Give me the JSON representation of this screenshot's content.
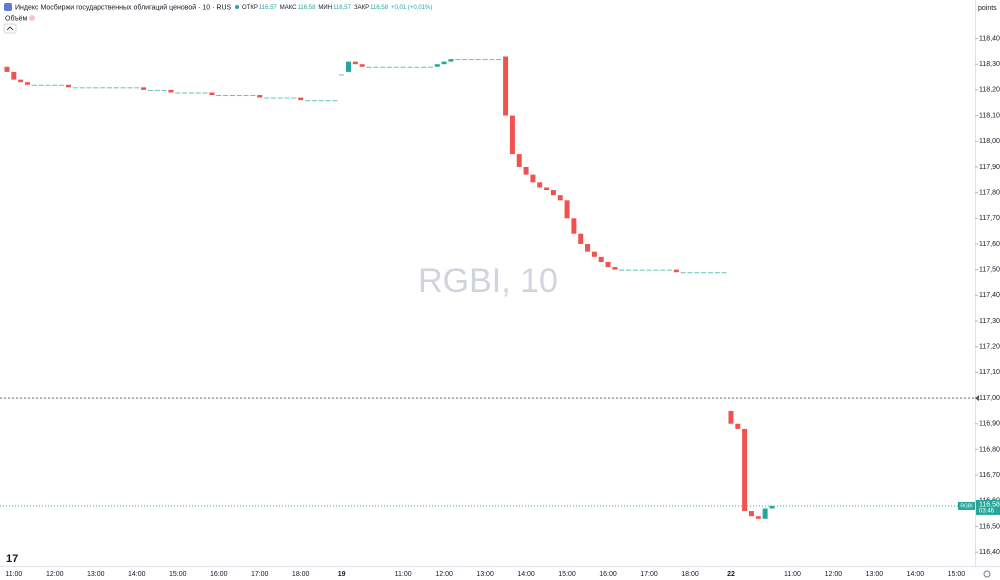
{
  "chart_data": {
    "type": "candlestick",
    "title": "Индекс Мосбиржи государственных облигаций ценовой · 10 · RUS",
    "ohlc_labels": [
      {
        "label": "ОТКР",
        "value": "116,57"
      },
      {
        "label": "МАКС",
        "value": "116,58"
      },
      {
        "label": "МИН",
        "value": "116,57"
      },
      {
        "label": "ЗАКР",
        "value": "116,58"
      }
    ],
    "change": "+0,01 (+0,01%)",
    "volume_label": "Объём",
    "watermark": "RGBI, 10",
    "axis_unit": "points",
    "symbol": "RGBI",
    "countdown": "03:46",
    "up_color": "#26a69a",
    "down_color": "#ef5350",
    "reference_line": 117,
    "last_price": {
      "value": 116.58,
      "label": "116,58"
    },
    "categories": [
      null,
      "11:00",
      null,
      null,
      null,
      null,
      null,
      "12:00",
      null,
      null,
      null,
      null,
      null,
      "13:00",
      null,
      null,
      null,
      null,
      null,
      "14:00",
      null,
      null,
      null,
      null,
      null,
      "15:00",
      null,
      null,
      null,
      null,
      null,
      "16:00",
      null,
      null,
      null,
      null,
      null,
      "17:00",
      null,
      null,
      null,
      null,
      null,
      "18:00",
      null,
      null,
      null,
      null,
      null,
      "19",
      null,
      null,
      null,
      null,
      null,
      null,
      null,
      null,
      "11:00",
      null,
      null,
      null,
      null,
      null,
      "12:00",
      null,
      null,
      null,
      null,
      null,
      "13:00",
      null,
      null,
      null,
      null,
      null,
      "14:00",
      null,
      null,
      null,
      null,
      null,
      "15:00",
      null,
      null,
      null,
      null,
      null,
      "16:00",
      null,
      null,
      null,
      null,
      null,
      "17:00",
      null,
      null,
      null,
      null,
      null,
      "18:00",
      null,
      null,
      null,
      null,
      null,
      "22",
      null,
      null,
      null,
      null,
      null,
      null,
      null,
      null,
      "11:00",
      null,
      null,
      null,
      null,
      null,
      "12:00",
      null,
      null,
      null,
      null,
      null,
      "13:00",
      null,
      null,
      null,
      null,
      null,
      "14:00",
      null,
      null,
      null,
      null,
      null,
      "15:00",
      null
    ],
    "open": [
      118.29,
      118.27,
      118.24,
      118.23,
      118.22,
      118.22,
      118.22,
      118.22,
      118.22,
      118.22,
      118.21,
      118.21,
      118.21,
      118.21,
      118.21,
      118.21,
      118.21,
      118.21,
      118.21,
      118.21,
      118.21,
      118.2,
      118.2,
      118.2,
      118.2,
      118.19,
      118.19,
      118.19,
      118.19,
      118.19,
      118.19,
      118.18,
      118.18,
      118.18,
      118.18,
      118.18,
      118.18,
      118.18,
      118.17,
      118.17,
      118.17,
      118.17,
      118.17,
      118.17,
      118.16,
      118.16,
      118.16,
      118.16,
      118.16,
      118.26,
      118.27,
      118.31,
      118.3,
      118.29,
      118.29,
      118.29,
      118.29,
      118.29,
      118.29,
      118.29,
      118.29,
      118.29,
      118.29,
      118.29,
      118.3,
      118.31,
      118.32,
      118.32,
      118.32,
      118.32,
      118.32,
      118.32,
      118.32,
      118.33,
      118.1,
      117.95,
      117.9,
      117.87,
      117.84,
      117.82,
      117.81,
      117.79,
      117.77,
      117.7,
      117.64,
      117.6,
      117.57,
      117.55,
      117.53,
      117.51,
      117.5,
      117.5,
      117.5,
      117.5,
      117.5,
      117.5,
      117.5,
      117.5,
      117.5,
      117.49,
      117.49,
      117.49,
      117.49,
      117.49,
      117.49,
      117.49,
      116.95,
      116.9,
      116.88,
      116.56,
      116.54,
      116.53,
      116.57,
      null,
      null,
      null,
      null,
      null,
      null,
      null,
      null,
      null,
      null,
      null,
      null,
      null,
      null,
      null,
      null,
      null,
      null,
      null,
      null,
      null,
      null,
      null,
      null,
      null,
      null,
      null,
      null
    ],
    "close": [
      118.27,
      118.24,
      118.23,
      118.22,
      118.22,
      118.22,
      118.22,
      118.22,
      118.22,
      118.21,
      118.21,
      118.21,
      118.21,
      118.21,
      118.21,
      118.21,
      118.21,
      118.21,
      118.21,
      118.21,
      118.2,
      118.2,
      118.2,
      118.2,
      118.19,
      118.19,
      118.19,
      118.19,
      118.19,
      118.19,
      118.18,
      118.18,
      118.18,
      118.18,
      118.18,
      118.18,
      118.18,
      118.17,
      118.17,
      118.17,
      118.17,
      118.17,
      118.17,
      118.16,
      118.16,
      118.16,
      118.16,
      118.16,
      118.16,
      118.26,
      118.31,
      118.3,
      118.29,
      118.29,
      118.29,
      118.29,
      118.29,
      118.29,
      118.29,
      118.29,
      118.29,
      118.29,
      118.29,
      118.3,
      118.31,
      118.32,
      118.32,
      118.32,
      118.32,
      118.32,
      118.32,
      118.32,
      118.32,
      118.1,
      117.95,
      117.9,
      117.87,
      117.84,
      117.82,
      117.81,
      117.79,
      117.77,
      117.7,
      117.64,
      117.6,
      117.57,
      117.55,
      117.53,
      117.51,
      117.5,
      117.5,
      117.5,
      117.5,
      117.5,
      117.5,
      117.5,
      117.5,
      117.5,
      117.49,
      117.49,
      117.49,
      117.49,
      117.49,
      117.49,
      117.49,
      117.49,
      116.9,
      116.88,
      116.56,
      116.54,
      116.53,
      116.57,
      116.58,
      null,
      null,
      null,
      null,
      null,
      null,
      null,
      null,
      null,
      null,
      null,
      null,
      null,
      null,
      null,
      null,
      null,
      null,
      null,
      null,
      null,
      null,
      null,
      null,
      null,
      null,
      null,
      null
    ],
    "ylim": [
      116.35,
      118.55
    ],
    "yticks": [
      {
        "value": 116.4,
        "label": "116,40"
      },
      {
        "value": 116.5,
        "label": "116,50"
      },
      {
        "value": 116.6,
        "label": "116,60"
      },
      {
        "value": 116.7,
        "label": "116,70"
      },
      {
        "value": 116.8,
        "label": "116,80"
      },
      {
        "value": 116.9,
        "label": "116,90"
      },
      {
        "value": 117,
        "label": "117,00"
      },
      {
        "value": 117.1,
        "label": "117,10"
      },
      {
        "value": 117.2,
        "label": "117,20"
      },
      {
        "value": 117.3,
        "label": "117,30"
      },
      {
        "value": 117.4,
        "label": "117,40"
      },
      {
        "value": 117.5,
        "label": "117,50"
      },
      {
        "value": 117.6,
        "label": "117,60"
      },
      {
        "value": 117.7,
        "label": "117,70"
      },
      {
        "value": 117.8,
        "label": "117,80"
      },
      {
        "value": 117.9,
        "label": "117,90"
      },
      {
        "value": 118,
        "label": "118,00"
      },
      {
        "value": 118.1,
        "label": "118,10"
      },
      {
        "value": 118.2,
        "label": "118,20"
      },
      {
        "value": 118.3,
        "label": "118,30"
      },
      {
        "value": 118.4,
        "label": "118,40"
      }
    ]
  }
}
